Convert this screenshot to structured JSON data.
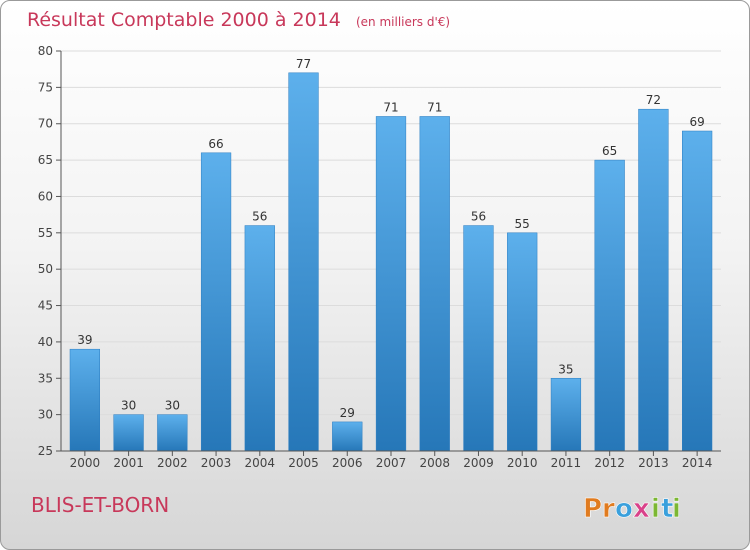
{
  "chart_data": {
    "type": "bar",
    "title": "Résultat Comptable 2000 à 2014",
    "subtitle": "(en milliers d'€)",
    "categories": [
      "2000",
      "2001",
      "2002",
      "2003",
      "2004",
      "2005",
      "2006",
      "2007",
      "2008",
      "2009",
      "2010",
      "2011",
      "2012",
      "2013",
      "2014"
    ],
    "values": [
      39,
      30,
      30,
      66,
      56,
      77,
      29,
      71,
      71,
      56,
      55,
      35,
      65,
      72,
      69
    ],
    "ylim": [
      25,
      80
    ],
    "yticks": [
      25,
      30,
      35,
      40,
      45,
      50,
      55,
      60,
      65,
      70,
      75,
      80
    ],
    "grid": true,
    "bar_color": "#3a8fd6"
  },
  "footer": {
    "commune": "BLIS-ET-BORN",
    "logo_text": "Proxiti",
    "logo_letters": [
      "P",
      "r",
      "o",
      "x",
      "i",
      "t",
      "i"
    ],
    "logo_colors": [
      "#e07b1f",
      "#e07b1f",
      "#3aa0dc",
      "#d9428a",
      "#7cb733",
      "#3aa0dc",
      "#7cb733"
    ]
  }
}
